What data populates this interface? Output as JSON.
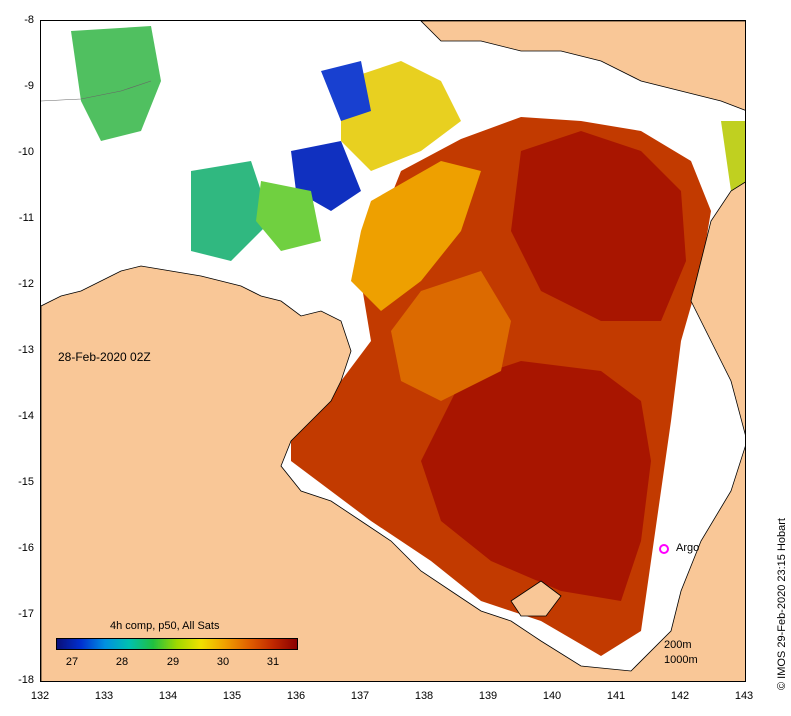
{
  "map": {
    "timestamp": "28-Feb-2020 02Z",
    "credit": "© IMOS 29-Feb-2020 23:15 Hobart",
    "x_axis_ticks": [
      "132",
      "133",
      "134",
      "135",
      "136",
      "137",
      "138",
      "139",
      "140",
      "141",
      "142",
      "143"
    ],
    "y_axis_ticks": [
      "-8",
      "-9",
      "-10",
      "-11",
      "-12",
      "-13",
      "-14",
      "-15",
      "-16",
      "-17",
      "-18"
    ],
    "lon_range": [
      132,
      143
    ],
    "lat_range": [
      -18,
      -8
    ],
    "argo_label": "Argo",
    "argo_position": {
      "lon": 141.7,
      "lat": -15.97
    },
    "colors": {
      "land": "#f9c797",
      "no_data": "#ffffff",
      "sst_warm": "#b22a00",
      "sst_hot": "#a81500",
      "sst_mid": "#dc6a00",
      "sst_cool": "#f2b000",
      "argo_marker": "#ff00ff"
    }
  },
  "legend": {
    "title": "4h comp, p50, All Sats",
    "ticks": [
      "27",
      "28",
      "29",
      "30",
      "31"
    ],
    "range": [
      26.7,
      31.5
    ],
    "colormap": [
      "#0a0f7a",
      "#0030d0",
      "#0090e0",
      "#00c0b0",
      "#20c040",
      "#a0d800",
      "#f0e000",
      "#f0a000",
      "#e06000",
      "#c02800",
      "#8a0000"
    ],
    "contour_labels": [
      "200m",
      "1000m"
    ]
  }
}
